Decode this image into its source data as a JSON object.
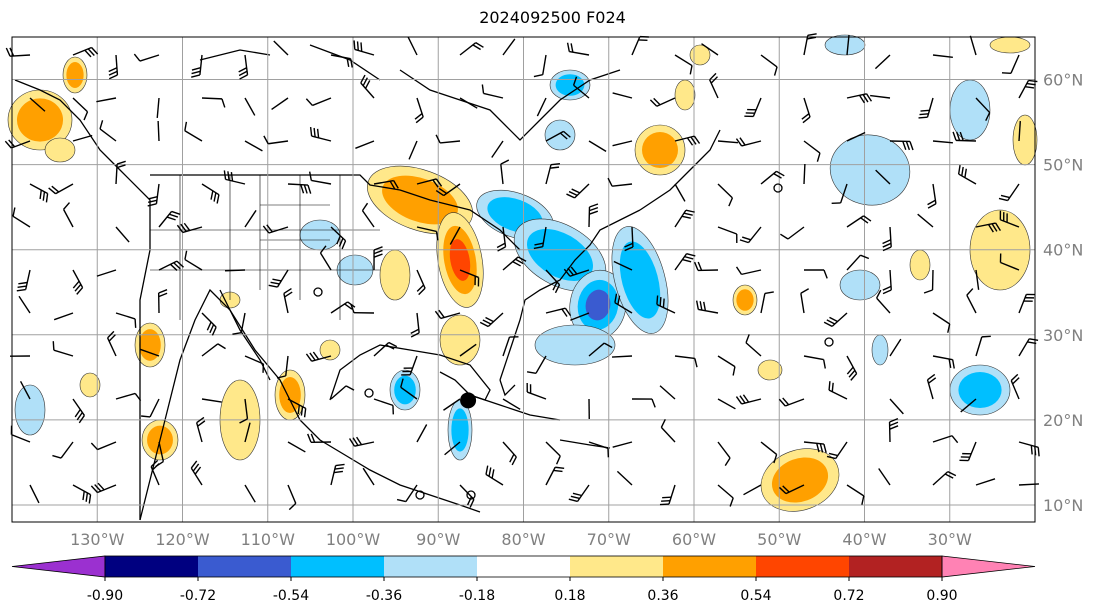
{
  "title": "2024092500 F024",
  "map": {
    "lon_range": [
      -140,
      -20
    ],
    "lat_range": [
      8,
      65
    ],
    "lon_ticks": [
      -130,
      -120,
      -110,
      -100,
      -90,
      -80,
      -70,
      -60,
      -50,
      -40,
      -30
    ],
    "lat_ticks": [
      10,
      20,
      30,
      40,
      50,
      60
    ],
    "lon_labels": [
      "130°W",
      "120°W",
      "110°W",
      "100°W",
      "90°W",
      "80°W",
      "70°W",
      "60°W",
      "50°W",
      "40°W",
      "30°W"
    ],
    "lat_labels": [
      "10°N",
      "20°N",
      "30°N",
      "40°N",
      "50°N",
      "60°N"
    ],
    "storm_marker": {
      "lon": -86.5,
      "lat": 22.3
    },
    "gridline_color": "#a0a0a0",
    "tick_label_color": "#808080"
  },
  "colorbar": {
    "levels": [
      "-0.90",
      "-0.72",
      "-0.54",
      "-0.36",
      "-0.18",
      "0.18",
      "0.36",
      "0.54",
      "0.72",
      "0.90"
    ],
    "colors": [
      "#9b30d0",
      "#000080",
      "#3a5bd0",
      "#00bfff",
      "#b0e0f8",
      "#ffffff",
      "#ffe88a",
      "#ffa000",
      "#ff4500",
      "#b22222",
      "#ff82b4"
    ]
  }
}
